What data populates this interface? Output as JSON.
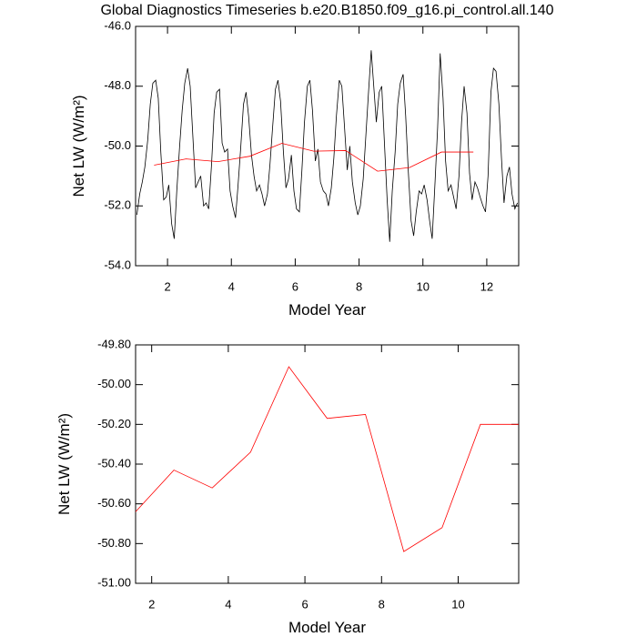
{
  "chart_data": [
    {
      "type": "line",
      "title": "Global Diagnostics Timeseries b.e20.B1850.f09_g16.pi_control.all.140",
      "xlabel": "Model Year",
      "ylabel": "Net LW (W/m²)",
      "xlim": [
        1,
        13
      ],
      "ylim": [
        -54,
        -46
      ],
      "xticks": [
        2,
        4,
        6,
        8,
        10,
        12
      ],
      "yticks": [
        {
          "value": -54,
          "label": "-54.0"
        },
        {
          "value": -52,
          "label": "-52.0"
        },
        {
          "value": -50,
          "label": "-50.0"
        },
        {
          "value": -48,
          "label": "-48.0"
        },
        {
          "value": -46,
          "label": "-46.0"
        }
      ],
      "series": [
        {
          "color": "#000000",
          "x": [
            1.04,
            1.13,
            1.21,
            1.29,
            1.38,
            1.46,
            1.54,
            1.63,
            1.71,
            1.79,
            1.88,
            1.96,
            2.04,
            2.13,
            2.21,
            2.29,
            2.38,
            2.46,
            2.54,
            2.63,
            2.71,
            2.79,
            2.88,
            2.96,
            3.04,
            3.13,
            3.21,
            3.29,
            3.38,
            3.46,
            3.54,
            3.63,
            3.71,
            3.79,
            3.88,
            3.96,
            4.04,
            4.13,
            4.21,
            4.29,
            4.38,
            4.46,
            4.54,
            4.63,
            4.71,
            4.79,
            4.88,
            4.96,
            5.04,
            5.13,
            5.21,
            5.29,
            5.38,
            5.46,
            5.54,
            5.63,
            5.71,
            5.79,
            5.88,
            5.96,
            6.04,
            6.13,
            6.21,
            6.29,
            6.38,
            6.46,
            6.54,
            6.63,
            6.71,
            6.79,
            6.88,
            6.96,
            7.04,
            7.13,
            7.21,
            7.29,
            7.38,
            7.46,
            7.54,
            7.63,
            7.71,
            7.79,
            7.88,
            7.96,
            8.04,
            8.13,
            8.21,
            8.29,
            8.38,
            8.46,
            8.54,
            8.63,
            8.71,
            8.79,
            8.88,
            8.96,
            9.04,
            9.13,
            9.21,
            9.29,
            9.38,
            9.46,
            9.54,
            9.63,
            9.71,
            9.79,
            9.88,
            9.96,
            10.04,
            10.13,
            10.21,
            10.29,
            10.38,
            10.46,
            10.54,
            10.63,
            10.71,
            10.79,
            10.88,
            10.96,
            11.04,
            11.13,
            11.21,
            11.29,
            11.38,
            11.46,
            11.54,
            11.63,
            11.71,
            11.79,
            11.88,
            11.96,
            12.04,
            12.13,
            12.21,
            12.29,
            12.38,
            12.46,
            12.54,
            12.63,
            12.71,
            12.79,
            12.88,
            12.96
          ],
          "values": [
            -52.3,
            -51.6,
            -51.2,
            -50.7,
            -49.8,
            -48.6,
            -47.9,
            -47.8,
            -48.4,
            -50.2,
            -51.8,
            -51.7,
            -51.3,
            -52.6,
            -53.1,
            -51.5,
            -50.0,
            -48.8,
            -47.9,
            -47.4,
            -48.0,
            -49.6,
            -51.4,
            -51.2,
            -51.0,
            -52.0,
            -51.9,
            -52.1,
            -50.6,
            -48.9,
            -48.2,
            -48.1,
            -49.9,
            -50.2,
            -50.1,
            -51.5,
            -52.0,
            -52.4,
            -51.3,
            -50.1,
            -48.6,
            -48.2,
            -49.0,
            -50.3,
            -51.0,
            -51.5,
            -51.3,
            -51.6,
            -52.0,
            -51.6,
            -50.6,
            -49.4,
            -48.1,
            -47.8,
            -48.5,
            -50.2,
            -51.4,
            -51.1,
            -50.3,
            -51.5,
            -52.1,
            -52.2,
            -50.8,
            -49.2,
            -48.0,
            -47.8,
            -48.8,
            -50.5,
            -50.1,
            -51.2,
            -51.5,
            -51.6,
            -52.0,
            -51.4,
            -50.4,
            -49.0,
            -47.8,
            -48.0,
            -49.3,
            -50.8,
            -50.0,
            -51.2,
            -51.9,
            -52.3,
            -52.0,
            -51.1,
            -49.7,
            -48.3,
            -46.8,
            -48.0,
            -49.2,
            -48.2,
            -48.0,
            -49.8,
            -51.8,
            -53.2,
            -51.5,
            -50.2,
            -48.6,
            -47.9,
            -47.6,
            -49.0,
            -50.8,
            -52.5,
            -53.0,
            -52.2,
            -51.5,
            -51.6,
            -51.3,
            -51.8,
            -52.5,
            -53.1,
            -51.2,
            -49.4,
            -46.9,
            -48.4,
            -50.5,
            -51.5,
            -51.3,
            -51.7,
            -52.1,
            -51.0,
            -49.2,
            -48.0,
            -48.9,
            -50.9,
            -51.8,
            -51.2,
            -51.4,
            -51.7,
            -52.0,
            -52.2,
            -51.0,
            -48.2,
            -47.4,
            -47.5,
            -48.6,
            -50.4,
            -51.9,
            -51.0,
            -50.7,
            -51.6,
            -52.1,
            -51.9
          ]
        },
        {
          "color": "#ff0000",
          "x": [
            1.58,
            2.58,
            3.58,
            4.58,
            5.58,
            6.58,
            7.58,
            8.58,
            9.58,
            10.58,
            11.58
          ],
          "values": [
            -50.64,
            -50.43,
            -50.52,
            -50.34,
            -49.91,
            -50.17,
            -50.15,
            -50.84,
            -50.72,
            -50.2,
            -50.2
          ]
        }
      ]
    },
    {
      "type": "line",
      "xlabel": "Model Year",
      "ylabel": "Net LW (W/m²)",
      "xlim": [
        1.58,
        11.58
      ],
      "ylim": [
        -51,
        -49.8
      ],
      "xticks": [
        2,
        4,
        6,
        8,
        10
      ],
      "yticks": [
        {
          "value": -51,
          "label": "-51.00"
        },
        {
          "value": -50.8,
          "label": "-50.80"
        },
        {
          "value": -50.6,
          "label": "-50.60"
        },
        {
          "value": -50.4,
          "label": "-50.40"
        },
        {
          "value": -50.2,
          "label": "-50.20"
        },
        {
          "value": -50,
          "label": "-50.00"
        },
        {
          "value": -49.8,
          "label": "-49.80"
        }
      ],
      "series": [
        {
          "color": "#ff0000",
          "x": [
            1.58,
            2.58,
            3.58,
            4.58,
            5.58,
            6.58,
            7.58,
            8.58,
            9.58,
            10.58,
            11.58
          ],
          "values": [
            -50.64,
            -50.43,
            -50.52,
            -50.34,
            -49.91,
            -50.17,
            -50.15,
            -50.84,
            -50.72,
            -50.2,
            -50.2
          ]
        }
      ]
    }
  ]
}
